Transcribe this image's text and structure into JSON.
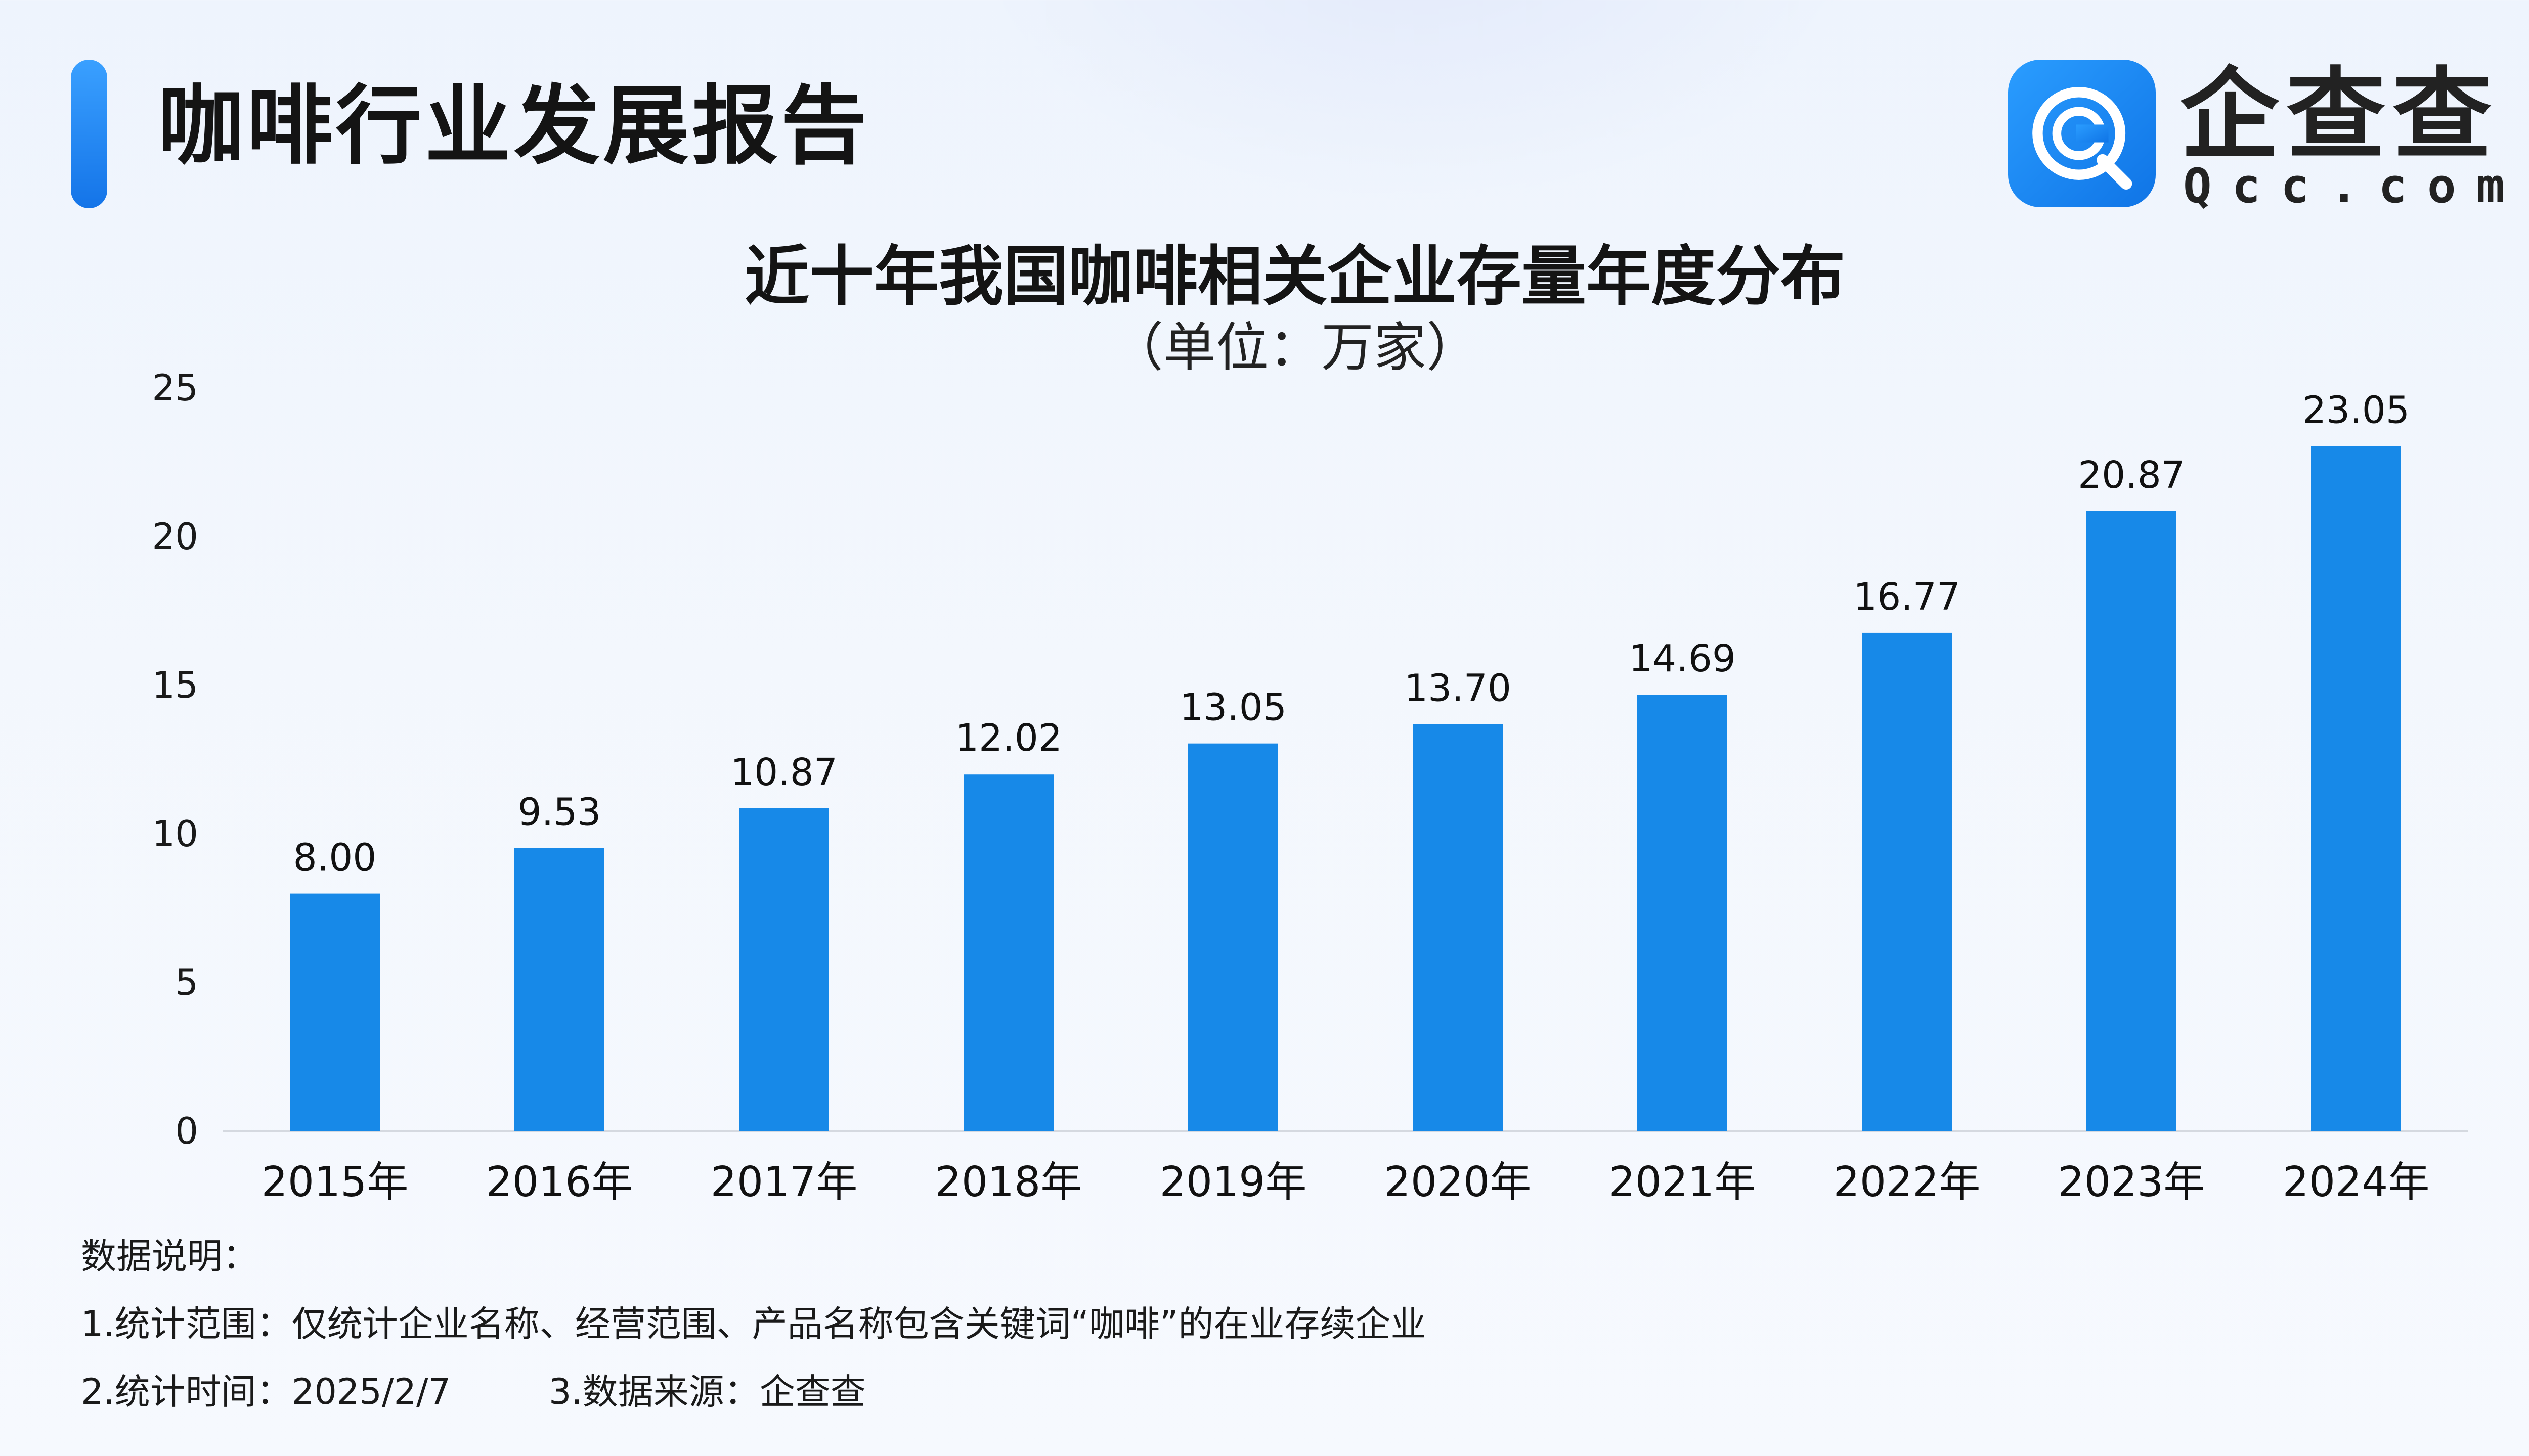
{
  "header": {
    "title": "咖啡行业发展报告"
  },
  "logo": {
    "cn": "企查查",
    "en": "Qcc.com",
    "icon": "qcc-logo-icon",
    "accent": "#1a8cf4"
  },
  "chart_data": {
    "type": "bar",
    "title": "近十年我国咖啡相关企业存量年度分布",
    "subtitle": "（单位：万家）",
    "categories": [
      "2015年",
      "2016年",
      "2017年",
      "2018年",
      "2019年",
      "2020年",
      "2021年",
      "2022年",
      "2023年",
      "2024年"
    ],
    "values": [
      8.0,
      9.53,
      10.87,
      12.02,
      13.05,
      13.7,
      14.69,
      16.77,
      20.87,
      23.05
    ],
    "value_labels": [
      "8.00",
      "9.53",
      "10.87",
      "12.02",
      "13.05",
      "13.70",
      "14.69",
      "16.77",
      "20.87",
      "23.05"
    ],
    "ylim": [
      0,
      25
    ],
    "yticks": [
      "0",
      "5",
      "10",
      "15",
      "20",
      "25"
    ],
    "grid": false,
    "legend": "none",
    "bar_color": "#1789e8"
  },
  "notes": {
    "heading": "数据说明：",
    "line1": "1.统计范围：仅统计企业名称、经营范围、产品名称包含关键词“咖啡”的在业存续企业",
    "time": "2.统计时间：2025/2/7",
    "source": "3.数据来源：企查查"
  }
}
